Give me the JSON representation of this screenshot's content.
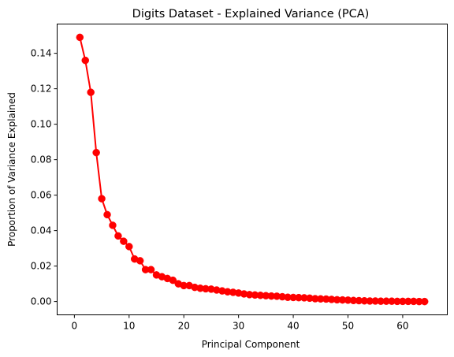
{
  "chart_data": {
    "type": "line",
    "title": "Digits Dataset - Explained Variance (PCA)",
    "xlabel": "Principal Component",
    "ylabel": "Proportion of Variance Explained",
    "xlim": [
      -3.15,
      68.15
    ],
    "ylim": [
      -0.0075,
      0.1565
    ],
    "xticks": [
      0,
      10,
      20,
      30,
      40,
      50,
      60
    ],
    "xtick_labels": [
      "0",
      "10",
      "20",
      "30",
      "40",
      "50",
      "60"
    ],
    "yticks": [
      0.0,
      0.02,
      0.04,
      0.06,
      0.08,
      0.1,
      0.12,
      0.14
    ],
    "ytick_labels": [
      "0.00",
      "0.02",
      "0.04",
      "0.06",
      "0.08",
      "0.10",
      "0.12",
      "0.14"
    ],
    "grid": false,
    "series": [
      {
        "color": "#ff0000",
        "marker": "circle",
        "x": [
          1,
          2,
          3,
          4,
          5,
          6,
          7,
          8,
          9,
          10,
          11,
          12,
          13,
          14,
          15,
          16,
          17,
          18,
          19,
          20,
          21,
          22,
          23,
          24,
          25,
          26,
          27,
          28,
          29,
          30,
          31,
          32,
          33,
          34,
          35,
          36,
          37,
          38,
          39,
          40,
          41,
          42,
          43,
          44,
          45,
          46,
          47,
          48,
          49,
          50,
          51,
          52,
          53,
          54,
          55,
          56,
          57,
          58,
          59,
          60,
          61,
          62,
          63,
          64
        ],
        "values": [
          0.149,
          0.136,
          0.118,
          0.084,
          0.058,
          0.049,
          0.043,
          0.037,
          0.034,
          0.031,
          0.024,
          0.023,
          0.018,
          0.018,
          0.015,
          0.014,
          0.013,
          0.012,
          0.01,
          0.009,
          0.009,
          0.008,
          0.0075,
          0.0072,
          0.007,
          0.0065,
          0.006,
          0.0055,
          0.0052,
          0.0048,
          0.0043,
          0.0039,
          0.0037,
          0.0035,
          0.0033,
          0.0031,
          0.003,
          0.0027,
          0.0024,
          0.0023,
          0.0022,
          0.0021,
          0.0019,
          0.0016,
          0.0015,
          0.0014,
          0.0012,
          0.001,
          0.0009,
          0.0008,
          0.0006,
          0.0005,
          0.0004,
          0.0003,
          0.0003,
          0.0002,
          0.0002,
          0.0002,
          0.0001,
          0.0001,
          0.0001,
          0.0001,
          0.0,
          0.0
        ]
      }
    ]
  }
}
